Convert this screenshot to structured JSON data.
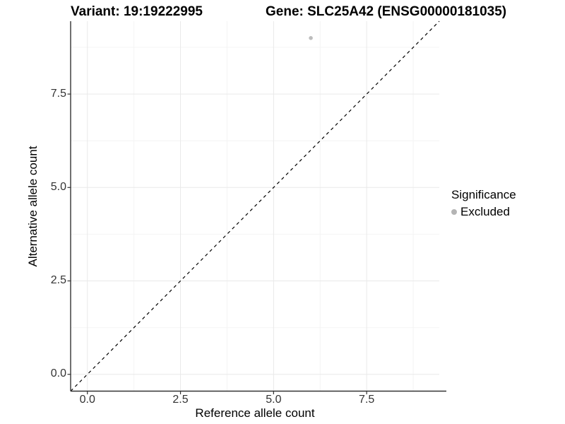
{
  "chart_data": {
    "type": "scatter",
    "title_left": "Variant: 19:19222995",
    "title_right": "Gene: SLC25A42 (ENSG00000181035)",
    "xlabel": "Reference allele count",
    "ylabel": "Alternative allele count",
    "xlim": [
      -0.45,
      9.45
    ],
    "ylim": [
      -0.45,
      9.45
    ],
    "x_tick_values": [
      0,
      2.5,
      5,
      7.5
    ],
    "x_tick_labels": [
      "0.0",
      "2.5",
      "5.0",
      "7.5"
    ],
    "y_tick_values": [
      0,
      2.5,
      5,
      7.5
    ],
    "y_tick_labels": [
      "0.0",
      "2.5",
      "5.0",
      "7.5"
    ],
    "x_minor_values": [
      1.25,
      3.75,
      6.25,
      8.75
    ],
    "y_minor_values": [
      1.25,
      3.75,
      6.25,
      8.75
    ],
    "grid": {
      "major_color": "#e9e9e9",
      "minor_color": "#f4f4f4",
      "background": "#ffffff"
    },
    "axis": {
      "line_color": "#333333",
      "tick_color": "#333333",
      "tick_label_color": "#333333"
    },
    "series": [
      {
        "name": "Excluded",
        "color": "#bdbdbd",
        "points": [
          {
            "x": 6,
            "y": 9
          }
        ]
      }
    ],
    "reference_line": {
      "type": "identity",
      "slope": 1,
      "intercept": 0,
      "style": "dashed",
      "color": "#000000"
    },
    "legend": {
      "title": "Significance",
      "position": "right",
      "entries": [
        {
          "label": "Excluded",
          "color": "#b4b4b4",
          "shape": "circle"
        }
      ]
    }
  }
}
